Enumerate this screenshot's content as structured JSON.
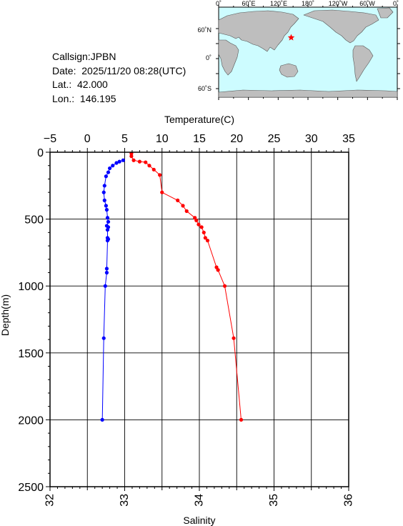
{
  "info": {
    "callsign": "Callsign:JPBN",
    "date": "Date:  2025/11/20 08:28(UTC)",
    "lat": "Lat.:  42.000",
    "lon": "Lon.:  146.195"
  },
  "map": {
    "lon_labels": [
      "0˚",
      "60˚E",
      "120˚E",
      "180˚",
      "120˚W",
      "60˚W",
      "0˚"
    ],
    "lat_labels": [
      "60˚N",
      "0˚",
      "60˚S"
    ],
    "station": {
      "lat": 42.0,
      "lon": 146.195
    },
    "colors": {
      "ocean": "#cdfcff",
      "land": "#bebebe",
      "station": "#ff0000"
    }
  },
  "chart_data": {
    "type": "line",
    "ylabel": "Depth(m)",
    "ylim": [
      2500,
      0
    ],
    "yticks": [
      0,
      500,
      1000,
      1500,
      2000,
      2500
    ],
    "top_axis": {
      "label": "Temperature(C)",
      "lim": [
        -5,
        35
      ],
      "ticks": [
        -5,
        0,
        5,
        10,
        15,
        20,
        25,
        30,
        35
      ]
    },
    "bottom_axis": {
      "label": "Salinity",
      "lim": [
        32,
        36
      ],
      "ticks": [
        32,
        33,
        34,
        35,
        36
      ]
    },
    "grid": true,
    "series": [
      {
        "axis": "temperature",
        "color": "#ff0000",
        "x": [
          5.9,
          5.9,
          6.2,
          7.0,
          7.8,
          8.3,
          8.9,
          9.7,
          10.0,
          12.1,
          12.8,
          13.3,
          14.4,
          14.6,
          14.9,
          15.3,
          15.6,
          15.8,
          16.1,
          17.3,
          17.5,
          18.4,
          19.6,
          20.6
        ],
        "y": [
          10,
          30,
          60,
          70,
          75,
          100,
          130,
          170,
          300,
          360,
          400,
          440,
          490,
          510,
          540,
          560,
          600,
          640,
          660,
          860,
          880,
          1000,
          1390,
          2000
        ]
      },
      {
        "axis": "salinity",
        "color": "#0000ff",
        "x": [
          32.98,
          32.93,
          32.89,
          32.84,
          32.8,
          32.78,
          32.75,
          32.73,
          32.72,
          32.73,
          32.75,
          32.76,
          32.77,
          32.78,
          32.76,
          32.78,
          32.77,
          32.77,
          32.78,
          32.77,
          32.76,
          32.76,
          32.74,
          32.72,
          32.7
        ],
        "y": [
          60,
          70,
          80,
          100,
          120,
          150,
          180,
          250,
          300,
          360,
          400,
          430,
          490,
          520,
          550,
          560,
          580,
          640,
          650,
          660,
          870,
          900,
          1000,
          1390,
          2000
        ]
      }
    ]
  }
}
